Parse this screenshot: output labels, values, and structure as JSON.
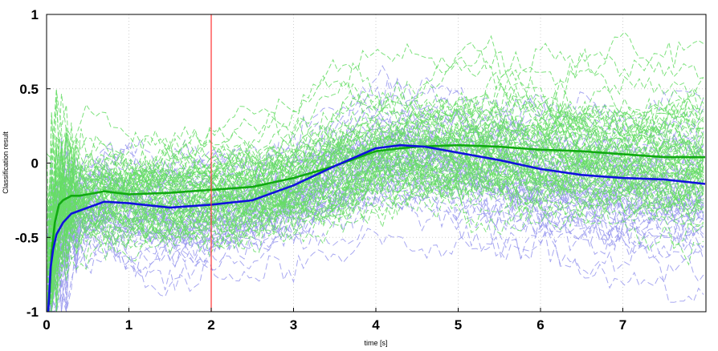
{
  "chart_data": {
    "type": "line",
    "title": "",
    "xlabel": "time [s]",
    "ylabel": "Classification result",
    "xlim": [
      0,
      8
    ],
    "ylim": [
      -1,
      1
    ],
    "x_ticks": [
      0,
      1,
      2,
      3,
      4,
      5,
      6,
      7
    ],
    "y_ticks": [
      -1,
      -0.5,
      0,
      0.5,
      1
    ],
    "grid": true,
    "legend": "none",
    "colors": {
      "green_trials": "#66dd66",
      "blue_trials": "#9999ee",
      "green_mean": "#11aa11",
      "blue_mean": "#1111dd",
      "marker_line": "#ff3333",
      "grid": "#cfcfcf"
    },
    "marker_x": 2,
    "series": [
      {
        "style": "solid",
        "color": "#11aa11",
        "x": [
          0.03,
          0.06,
          0.1,
          0.15,
          0.2,
          0.3,
          0.4,
          0.5,
          0.7,
          1.0,
          1.5,
          2.0,
          2.5,
          3.0,
          3.5,
          4.0,
          4.3,
          4.5,
          5.0,
          5.5,
          6.0,
          6.5,
          7.0,
          7.5,
          8.0
        ],
        "y": [
          -0.95,
          -0.6,
          -0.4,
          -0.28,
          -0.25,
          -0.22,
          -0.22,
          -0.21,
          -0.19,
          -0.21,
          -0.2,
          -0.18,
          -0.16,
          -0.1,
          -0.02,
          0.08,
          0.1,
          0.11,
          0.12,
          0.11,
          0.09,
          0.08,
          0.06,
          0.04,
          0.04
        ]
      },
      {
        "style": "solid",
        "color": "#1111dd",
        "x": [
          0.02,
          0.05,
          0.08,
          0.12,
          0.2,
          0.3,
          0.5,
          0.7,
          1.0,
          1.5,
          2.0,
          2.5,
          3.0,
          3.5,
          4.0,
          4.3,
          4.6,
          5.0,
          5.5,
          6.0,
          6.5,
          7.0,
          7.5,
          8.0
        ],
        "y": [
          -1.0,
          -0.7,
          -0.58,
          -0.48,
          -0.4,
          -0.34,
          -0.3,
          -0.26,
          -0.27,
          -0.3,
          -0.28,
          -0.25,
          -0.15,
          -0.02,
          0.1,
          0.12,
          0.11,
          0.07,
          0.02,
          -0.04,
          -0.08,
          -0.1,
          -0.11,
          -0.14
        ]
      }
    ]
  }
}
